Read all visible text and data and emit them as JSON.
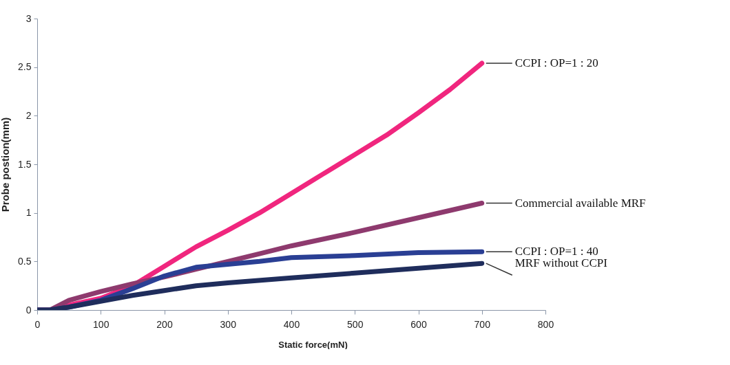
{
  "chart_data": {
    "type": "line",
    "xlabel": "Static force(mN)",
    "ylabel": "Probe postion(mm)",
    "xlim": [
      0,
      800
    ],
    "xticks": [
      0,
      100,
      200,
      300,
      400,
      500,
      600,
      700,
      800
    ],
    "ylim": [
      0,
      3
    ],
    "yticks": [
      0,
      0.5,
      1,
      1.5,
      2,
      2.5,
      3
    ],
    "grid": false,
    "legend": false,
    "marker": "none",
    "line_style": "solid",
    "series": [
      {
        "name": "CCPI : OP=1 : 20",
        "color": "#f0267e",
        "x": [
          0,
          20,
          50,
          100,
          150,
          200,
          250,
          300,
          350,
          400,
          450,
          500,
          550,
          600,
          650,
          700
        ],
        "values": [
          0,
          0,
          0.05,
          0.12,
          0.25,
          0.45,
          0.65,
          0.82,
          1.0,
          1.2,
          1.4,
          1.6,
          1.8,
          2.03,
          2.27,
          2.54
        ]
      },
      {
        "name": "Commercial available MRF",
        "color": "#8e3a6e",
        "x": [
          0,
          20,
          50,
          100,
          150,
          200,
          250,
          300,
          350,
          400,
          500,
          600,
          700
        ],
        "values": [
          0,
          0,
          0.1,
          0.19,
          0.27,
          0.34,
          0.42,
          0.5,
          0.58,
          0.66,
          0.8,
          0.95,
          1.1
        ]
      },
      {
        "name": "CCPI : OP=1 : 40",
        "color": "#2a3f94",
        "x": [
          0,
          20,
          50,
          100,
          150,
          200,
          250,
          300,
          350,
          400,
          500,
          600,
          700
        ],
        "values": [
          0,
          0,
          0.03,
          0.1,
          0.22,
          0.35,
          0.44,
          0.47,
          0.5,
          0.54,
          0.56,
          0.59,
          0.6
        ]
      },
      {
        "name": "MRF without CCPI",
        "color": "#1f2d5c",
        "x": [
          0,
          20,
          50,
          100,
          150,
          200,
          250,
          300,
          400,
          500,
          600,
          700
        ],
        "values": [
          0,
          0,
          0.03,
          0.09,
          0.15,
          0.2,
          0.25,
          0.28,
          0.33,
          0.38,
          0.43,
          0.48
        ]
      }
    ]
  }
}
